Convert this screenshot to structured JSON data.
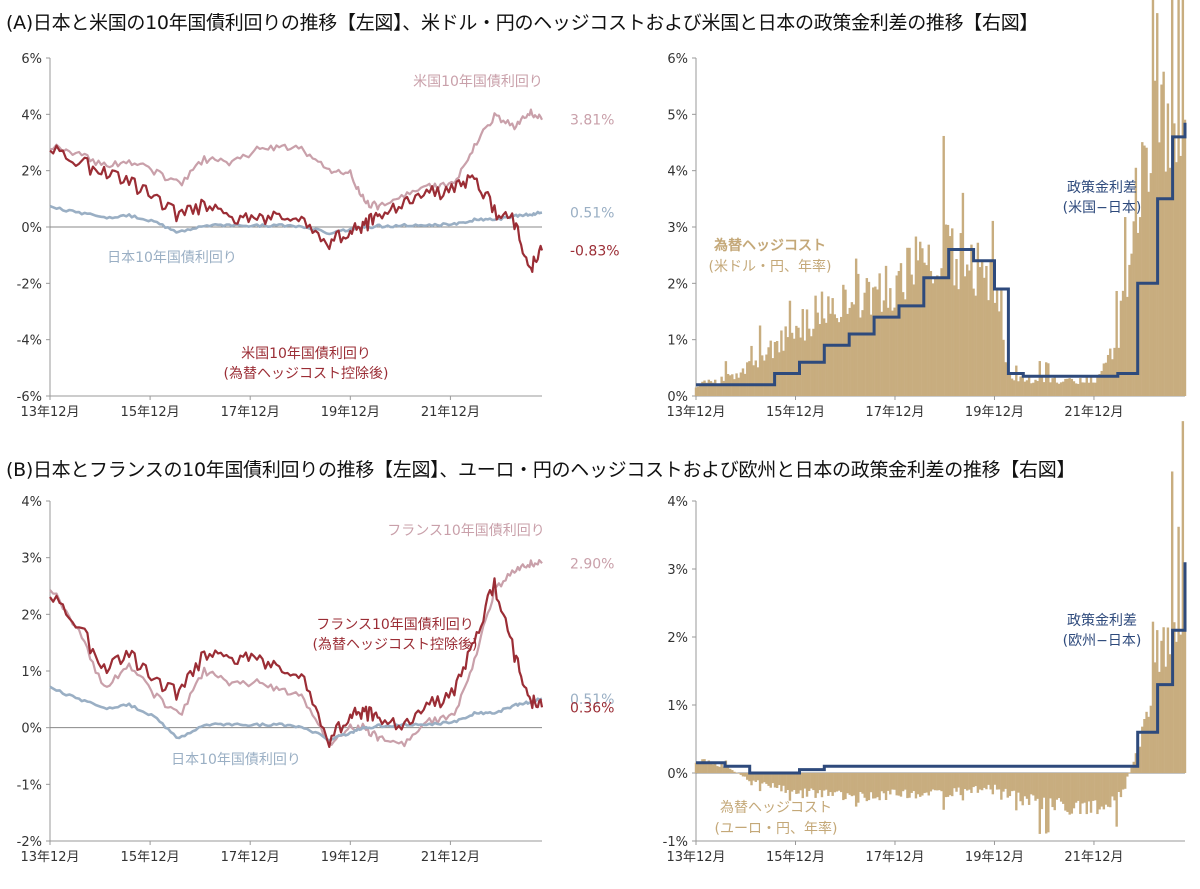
{
  "section_a": {
    "title": "(A)日本と米国の10年国債利回りの推移【左図】、米ドル・円のヘッジコストおよび米国と日本の政策金利差の推移【右図】"
  },
  "section_b": {
    "title": "(B)日本とフランスの10年国債利回りの推移【左図】、ユーロ・円のヘッジコストおよび欧州と日本の政策金利差の推移【右図】"
  },
  "colors": {
    "foreign_yield": "#c9a0aa",
    "hedged_yield": "#9b2d35",
    "japan_yield": "#9aafc4",
    "hedge_cost_fill": "#c8ad7f",
    "policy_spread": "#2e4a7c",
    "hedge_label": "#c4a878",
    "axis": "#999999"
  },
  "chart_data": [
    {
      "id": "A-left",
      "type": "line",
      "ylim": [
        -6,
        6
      ],
      "yticks": [
        "6%",
        "4%",
        "2%",
        "0%",
        "-2%",
        "-4%",
        "-6%"
      ],
      "xticks": [
        "13年12月",
        "15年12月",
        "17年12月",
        "19年12月",
        "21年12月"
      ],
      "x": [
        2013.92,
        2014.5,
        2015.0,
        2015.5,
        2016.0,
        2016.5,
        2017.0,
        2017.5,
        2018.0,
        2018.5,
        2019.0,
        2019.5,
        2019.92,
        2020.2,
        2020.5,
        2021.0,
        2021.5,
        2022.0,
        2022.4,
        2022.8,
        2023.2,
        2023.5,
        2023.75
      ],
      "series": [
        {
          "name": "米国10年国債利回り",
          "color": "#c9a0aa",
          "end_label": "3.81%",
          "values": [
            2.9,
            2.6,
            2.2,
            2.3,
            2.0,
            1.5,
            2.4,
            2.3,
            2.7,
            2.9,
            2.7,
            2.0,
            1.9,
            0.9,
            0.7,
            1.1,
            1.4,
            1.5,
            2.9,
            3.9,
            3.6,
            4.1,
            3.81
          ]
        },
        {
          "name": "日本10年国債利回り",
          "color": "#9aafc4",
          "end_label": "0.51%",
          "values": [
            0.7,
            0.5,
            0.35,
            0.4,
            0.2,
            -0.2,
            0.05,
            0.05,
            0.05,
            0.05,
            0.0,
            -0.2,
            -0.1,
            0.0,
            0.03,
            0.05,
            0.05,
            0.1,
            0.25,
            0.25,
            0.4,
            0.45,
            0.51
          ]
        },
        {
          "name": "米国10年国債利回り(為替ヘッジコスト控除後)",
          "color": "#9b2d35",
          "end_label": "-0.83%",
          "values": [
            2.7,
            2.3,
            1.9,
            1.6,
            1.0,
            0.4,
            0.8,
            0.3,
            0.2,
            0.3,
            0.3,
            -0.5,
            -0.2,
            0.1,
            0.3,
            0.8,
            1.2,
            1.3,
            1.9,
            0.5,
            0.2,
            -1.5,
            -0.83
          ]
        }
      ],
      "labels": {
        "us": "米国10年国債利回り",
        "jp": "日本10年国債利回り",
        "hedged1": "米国10年国債利回り",
        "hedged2": "(為替ヘッジコスト控除後)"
      }
    },
    {
      "id": "A-right",
      "type": "area",
      "ylim": [
        0,
        6
      ],
      "yticks": [
        "6%",
        "5%",
        "4%",
        "3%",
        "2%",
        "1%",
        "0%"
      ],
      "xticks": [
        "13年12月",
        "15年12月",
        "17年12月",
        "19年12月",
        "21年12月"
      ],
      "x": [
        2013.92,
        2014.5,
        2015.0,
        2015.5,
        2016.0,
        2016.5,
        2017.0,
        2017.5,
        2018.0,
        2018.5,
        2019.0,
        2019.5,
        2019.92,
        2020.2,
        2020.5,
        2021.0,
        2021.5,
        2022.0,
        2022.4,
        2022.8,
        2023.2,
        2023.5,
        2023.75
      ],
      "series": [
        {
          "name": "為替ヘッジコスト(米ドル・円、年率)",
          "color": "#c8ad7f",
          "values": [
            0.2,
            0.3,
            0.5,
            0.9,
            1.2,
            1.6,
            1.7,
            1.8,
            2.0,
            2.4,
            2.6,
            2.3,
            2.0,
            0.4,
            0.3,
            0.3,
            0.25,
            0.3,
            1.0,
            3.5,
            4.8,
            5.3,
            5.3
          ]
        },
        {
          "name": "政策金利差(米国−日本)",
          "color": "#2e4a7c",
          "step": true,
          "values": [
            0.2,
            0.2,
            0.2,
            0.4,
            0.6,
            0.9,
            1.1,
            1.4,
            1.6,
            2.1,
            2.6,
            2.4,
            1.9,
            0.4,
            0.35,
            0.35,
            0.35,
            0.35,
            0.4,
            2.0,
            3.5,
            4.6,
            4.85
          ]
        }
      ],
      "labels": {
        "hedge1": "為替ヘッジコスト",
        "hedge2": "(米ドル・円、年率)",
        "spread1": "政策金利差",
        "spread2": "(米国−日本)"
      }
    },
    {
      "id": "B-left",
      "type": "line",
      "ylim": [
        -2,
        4
      ],
      "yticks": [
        "4%",
        "3%",
        "2%",
        "1%",
        "0%",
        "-1%",
        "-2%"
      ],
      "xticks": [
        "13年12月",
        "15年12月",
        "17年12月",
        "19年12月",
        "21年12月"
      ],
      "x": [
        2013.92,
        2014.5,
        2015.0,
        2015.5,
        2016.0,
        2016.5,
        2017.0,
        2017.5,
        2018.0,
        2018.5,
        2019.0,
        2019.5,
        2019.92,
        2020.2,
        2020.5,
        2021.0,
        2021.5,
        2022.0,
        2022.4,
        2022.8,
        2023.2,
        2023.5,
        2023.75
      ],
      "series": [
        {
          "name": "フランス10年国債利回り",
          "color": "#c9a0aa",
          "end_label": "2.90%",
          "values": [
            2.5,
            1.7,
            0.7,
            1.1,
            0.6,
            0.2,
            1.0,
            0.8,
            0.8,
            0.7,
            0.5,
            -0.3,
            0.0,
            0.0,
            -0.2,
            -0.3,
            0.1,
            0.2,
            1.2,
            2.4,
            2.8,
            2.9,
            2.9
          ]
        },
        {
          "name": "日本10年国債利回り",
          "color": "#9aafc4",
          "end_label": "0.51%",
          "values": [
            0.7,
            0.5,
            0.35,
            0.4,
            0.2,
            -0.2,
            0.05,
            0.05,
            0.05,
            0.05,
            0.0,
            -0.2,
            -0.1,
            0.0,
            0.03,
            0.05,
            0.05,
            0.1,
            0.25,
            0.25,
            0.4,
            0.45,
            0.51
          ]
        },
        {
          "name": "フランス10年国債利回り(為替ヘッジコスト控除後)",
          "color": "#9b2d35",
          "end_label": "0.36%",
          "values": [
            2.3,
            1.8,
            1.0,
            1.3,
            0.8,
            0.6,
            1.3,
            1.2,
            1.2,
            1.0,
            0.9,
            -0.2,
            0.2,
            0.3,
            0.1,
            0.0,
            0.4,
            0.6,
            1.6,
            2.5,
            1.3,
            0.5,
            0.36
          ]
        }
      ],
      "labels": {
        "fr": "フランス10年国債利回り",
        "jp": "日本10年国債利回り",
        "hedged1": "フランス10年国債利回り",
        "hedged2": "(為替ヘッジコスト控除後)"
      }
    },
    {
      "id": "B-right",
      "type": "area",
      "ylim": [
        -1,
        4
      ],
      "yticks": [
        "4%",
        "3%",
        "2%",
        "1%",
        "0%",
        "-1%"
      ],
      "xticks": [
        "13年12月",
        "15年12月",
        "17年12月",
        "19年12月",
        "21年12月"
      ],
      "x": [
        2013.92,
        2014.5,
        2015.0,
        2015.5,
        2016.0,
        2016.5,
        2017.0,
        2017.5,
        2018.0,
        2018.5,
        2019.0,
        2019.5,
        2019.92,
        2020.2,
        2020.5,
        2021.0,
        2021.5,
        2022.0,
        2022.4,
        2022.8,
        2023.2,
        2023.5,
        2023.75
      ],
      "series": [
        {
          "name": "為替ヘッジコスト(ユーロ・円、年率)",
          "color": "#c8ad7f",
          "values": [
            0.2,
            0.1,
            -0.1,
            -0.2,
            -0.3,
            -0.3,
            -0.35,
            -0.35,
            -0.3,
            -0.3,
            -0.3,
            -0.25,
            -0.2,
            -0.3,
            -0.4,
            -0.45,
            -0.5,
            -0.5,
            -0.4,
            0.3,
            1.5,
            2.4,
            2.6
          ]
        },
        {
          "name": "政策金利差(欧州−日本)",
          "color": "#2e4a7c",
          "step": true,
          "values": [
            0.15,
            0.1,
            0.0,
            0.0,
            0.05,
            0.1,
            0.1,
            0.1,
            0.1,
            0.1,
            0.1,
            0.1,
            0.1,
            0.1,
            0.1,
            0.1,
            0.1,
            0.1,
            0.1,
            0.6,
            1.3,
            2.1,
            3.1
          ]
        }
      ],
      "labels": {
        "hedge1": "為替ヘッジコスト",
        "hedge2": "(ユーロ・円、年率)",
        "spread1": "政策金利差",
        "spread2": "(欧州−日本)"
      }
    }
  ]
}
